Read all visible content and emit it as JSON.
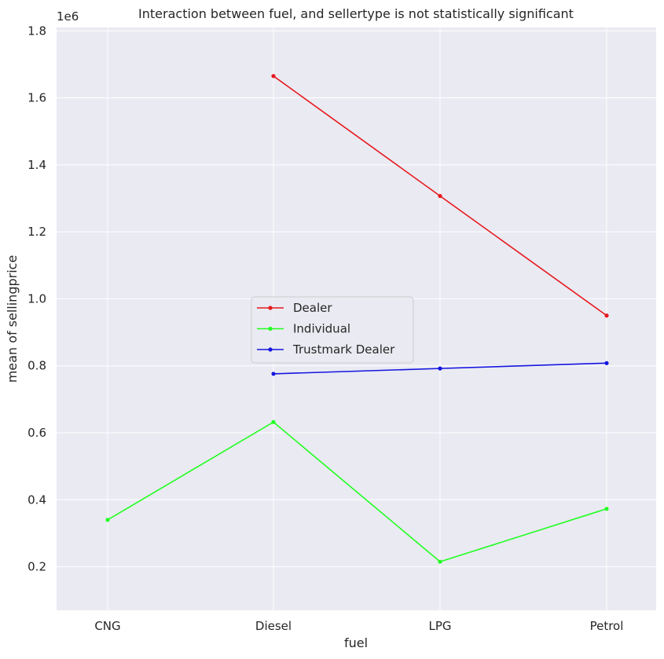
{
  "chart_data": {
    "type": "line",
    "title": "Interaction between fuel, and sellertype is not statistically significant",
    "xlabel": "fuel",
    "ylabel": "mean of sellingprice",
    "y_offset_label": "1e6",
    "categories": [
      "CNG",
      "Diesel",
      "LPG",
      "Petrol"
    ],
    "y_ticks": [
      0.2,
      0.4,
      0.6,
      0.8,
      1.0,
      1.2,
      1.4,
      1.6,
      1.8
    ],
    "y_tick_labels": [
      "0.2",
      "0.4",
      "0.6",
      "0.8",
      "1.0",
      "1.2",
      "1.4",
      "1.6",
      "1.8"
    ],
    "ylim": [
      0.07,
      1.81
    ],
    "grid": true,
    "legend_position": "center-left",
    "series": [
      {
        "name": "Dealer",
        "color": "#e6191e",
        "values": [
          null,
          1.665,
          1.307,
          0.95
        ]
      },
      {
        "name": "Individual",
        "color": "#22ff22",
        "values": [
          0.34,
          0.632,
          0.215,
          0.373
        ]
      },
      {
        "name": "Trustmark Dealer",
        "color": "#1515e0",
        "values": [
          null,
          0.776,
          0.792,
          0.808
        ]
      }
    ]
  }
}
